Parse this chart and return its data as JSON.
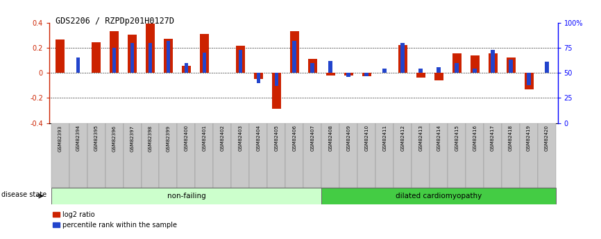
{
  "title": "GDS2206 / RZPDp201H0127D",
  "samples": [
    "GSM82393",
    "GSM82394",
    "GSM82395",
    "GSM82396",
    "GSM82397",
    "GSM82398",
    "GSM82399",
    "GSM82400",
    "GSM82401",
    "GSM82402",
    "GSM82403",
    "GSM82404",
    "GSM82405",
    "GSM82406",
    "GSM82407",
    "GSM82408",
    "GSM82409",
    "GSM82410",
    "GSM82411",
    "GSM82412",
    "GSM82413",
    "GSM82414",
    "GSM82415",
    "GSM82416",
    "GSM82417",
    "GSM82418",
    "GSM82419",
    "GSM82420"
  ],
  "log2_ratio": [
    0.265,
    0.0,
    0.245,
    0.335,
    0.305,
    0.395,
    0.27,
    0.055,
    0.31,
    0.0,
    0.215,
    -0.05,
    -0.285,
    0.33,
    0.11,
    -0.02,
    -0.02,
    -0.025,
    0.0,
    0.22,
    -0.04,
    -0.06,
    0.155,
    0.14,
    0.155,
    0.12,
    -0.13,
    0.0
  ],
  "percentile_pct": [
    50,
    65,
    50,
    75,
    80,
    80,
    82,
    60,
    70,
    50,
    73,
    40,
    37,
    82,
    60,
    62,
    46,
    47,
    54,
    80,
    54,
    56,
    60,
    54,
    73,
    63,
    38,
    61
  ],
  "non_failing_count": 15,
  "ylim_left": [
    -0.4,
    0.4
  ],
  "ylim_right": [
    0,
    100
  ],
  "bar_color_red": "#cc2200",
  "bar_color_blue": "#2244cc",
  "nonfailing_color": "#ccffcc",
  "dilated_color": "#44cc44",
  "disease_state_label": "disease state",
  "nonfailing_label": "non-failing",
  "dilated_label": "dilated cardiomyopathy",
  "legend_red": "log2 ratio",
  "legend_blue": "percentile rank within the sample"
}
